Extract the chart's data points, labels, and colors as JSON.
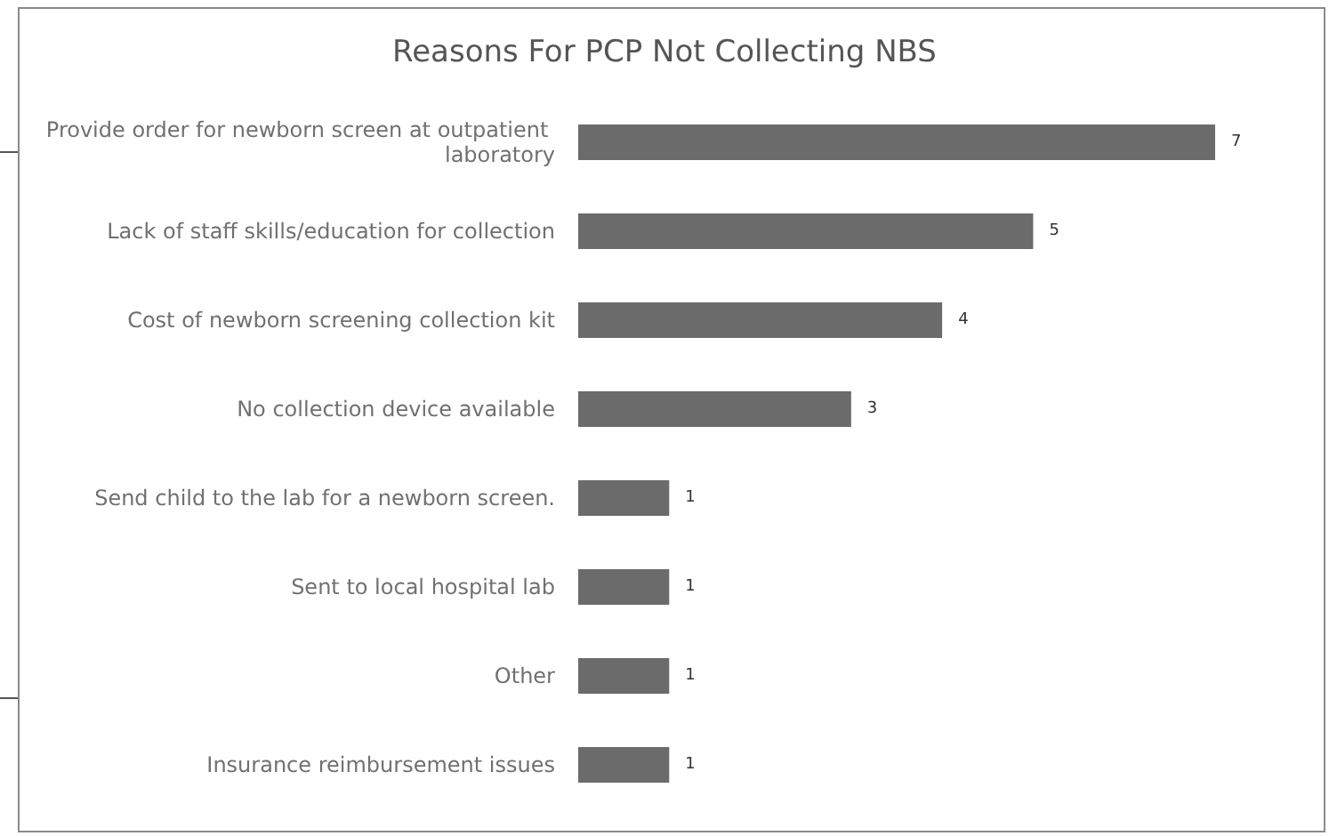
{
  "chart_data": {
    "type": "bar",
    "orientation": "horizontal",
    "title": "Reasons For PCP Not Collecting NBS",
    "categories": [
      "Provide order for newborn screen at outpatient laboratory",
      "Lack of staff skills/education for collection",
      "Cost of newborn screening collection kit",
      "No collection device available",
      "Send child to the lab for a newborn screen.",
      "Sent to local hospital lab",
      "Other",
      "Insurance reimbursement issues"
    ],
    "values": [
      7,
      5,
      4,
      3,
      1,
      1,
      1,
      1
    ],
    "color": "#6b6b6b",
    "data_labels": true,
    "tick_labels": "y",
    "grid": false
  }
}
